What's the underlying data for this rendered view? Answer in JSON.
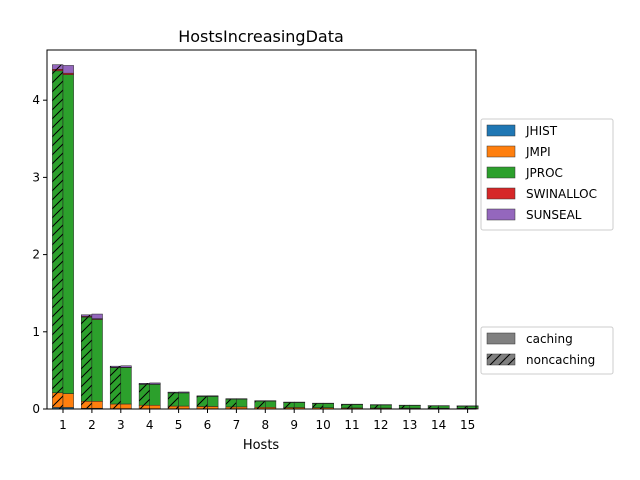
{
  "chart_data": {
    "type": "bar",
    "stacked": true,
    "title": "HostsIncreasingData",
    "xlabel": "Hosts",
    "ylabel": "",
    "ylim": [
      0,
      4.65
    ],
    "yticks": [
      0,
      1,
      2,
      3,
      4
    ],
    "categories": [
      "1",
      "2",
      "3",
      "4",
      "5",
      "6",
      "7",
      "8",
      "9",
      "10",
      "11",
      "12",
      "13",
      "14",
      "15"
    ],
    "series_legend": [
      {
        "name": "JHIST",
        "color": "#1f77b4"
      },
      {
        "name": "JMPI",
        "color": "#ff7f0e"
      },
      {
        "name": "JPROC",
        "color": "#2ca02c"
      },
      {
        "name": "SWINALLOC",
        "color": "#d62728"
      },
      {
        "name": "SUNSEAL",
        "color": "#9467bd"
      }
    ],
    "variant_legend": [
      {
        "name": "caching",
        "hatch": false,
        "color": "#808080"
      },
      {
        "name": "noncaching",
        "hatch": true,
        "color": "#808080"
      }
    ],
    "bars": [
      {
        "variant": "noncaching",
        "components": {
          "JHIST": [
            0.02,
            0.01,
            0.005,
            0.004,
            0.003,
            0.003,
            0.002,
            0.002,
            0.002,
            0.002,
            0.001,
            0.001,
            0.001,
            0.001,
            0.001
          ],
          "JMPI": [
            0.19,
            0.09,
            0.06,
            0.045,
            0.035,
            0.03,
            0.025,
            0.02,
            0.018,
            0.015,
            0.013,
            0.012,
            0.011,
            0.01,
            0.009
          ],
          "JPROC": [
            4.17,
            1.09,
            0.47,
            0.27,
            0.17,
            0.13,
            0.1,
            0.08,
            0.065,
            0.055,
            0.045,
            0.04,
            0.035,
            0.03,
            0.028
          ],
          "SWINALLOC": [
            0.02,
            0.01,
            0.005,
            0.004,
            0.003,
            0.002,
            0.002,
            0.002,
            0.001,
            0.001,
            0.001,
            0.001,
            0.001,
            0.001,
            0.001
          ],
          "SUNSEAL": [
            0.06,
            0.02,
            0.015,
            0.01,
            0.008,
            0.006,
            0.005,
            0.004,
            0.004,
            0.003,
            0.003,
            0.003,
            0.002,
            0.002,
            0.002
          ]
        }
      },
      {
        "variant": "caching",
        "components": {
          "JHIST": [
            0.02,
            0.01,
            0.005,
            0.004,
            0.003,
            0.003,
            0.002,
            0.002,
            0.002,
            0.002,
            0.001,
            0.001,
            0.001,
            0.001,
            0.001
          ],
          "JMPI": [
            0.18,
            0.09,
            0.06,
            0.045,
            0.035,
            0.03,
            0.025,
            0.02,
            0.018,
            0.015,
            0.013,
            0.012,
            0.011,
            0.01,
            0.009
          ],
          "JPROC": [
            4.13,
            1.06,
            0.47,
            0.27,
            0.17,
            0.13,
            0.1,
            0.08,
            0.065,
            0.055,
            0.045,
            0.04,
            0.035,
            0.03,
            0.028
          ],
          "SWINALLOC": [
            0.02,
            0.01,
            0.005,
            0.004,
            0.003,
            0.002,
            0.002,
            0.002,
            0.001,
            0.001,
            0.001,
            0.001,
            0.001,
            0.001,
            0.001
          ],
          "SUNSEAL": [
            0.1,
            0.06,
            0.02,
            0.015,
            0.01,
            0.007,
            0.005,
            0.004,
            0.004,
            0.003,
            0.003,
            0.003,
            0.002,
            0.002,
            0.002
          ]
        }
      }
    ],
    "grid": false,
    "legend_placement": "right-outside"
  }
}
